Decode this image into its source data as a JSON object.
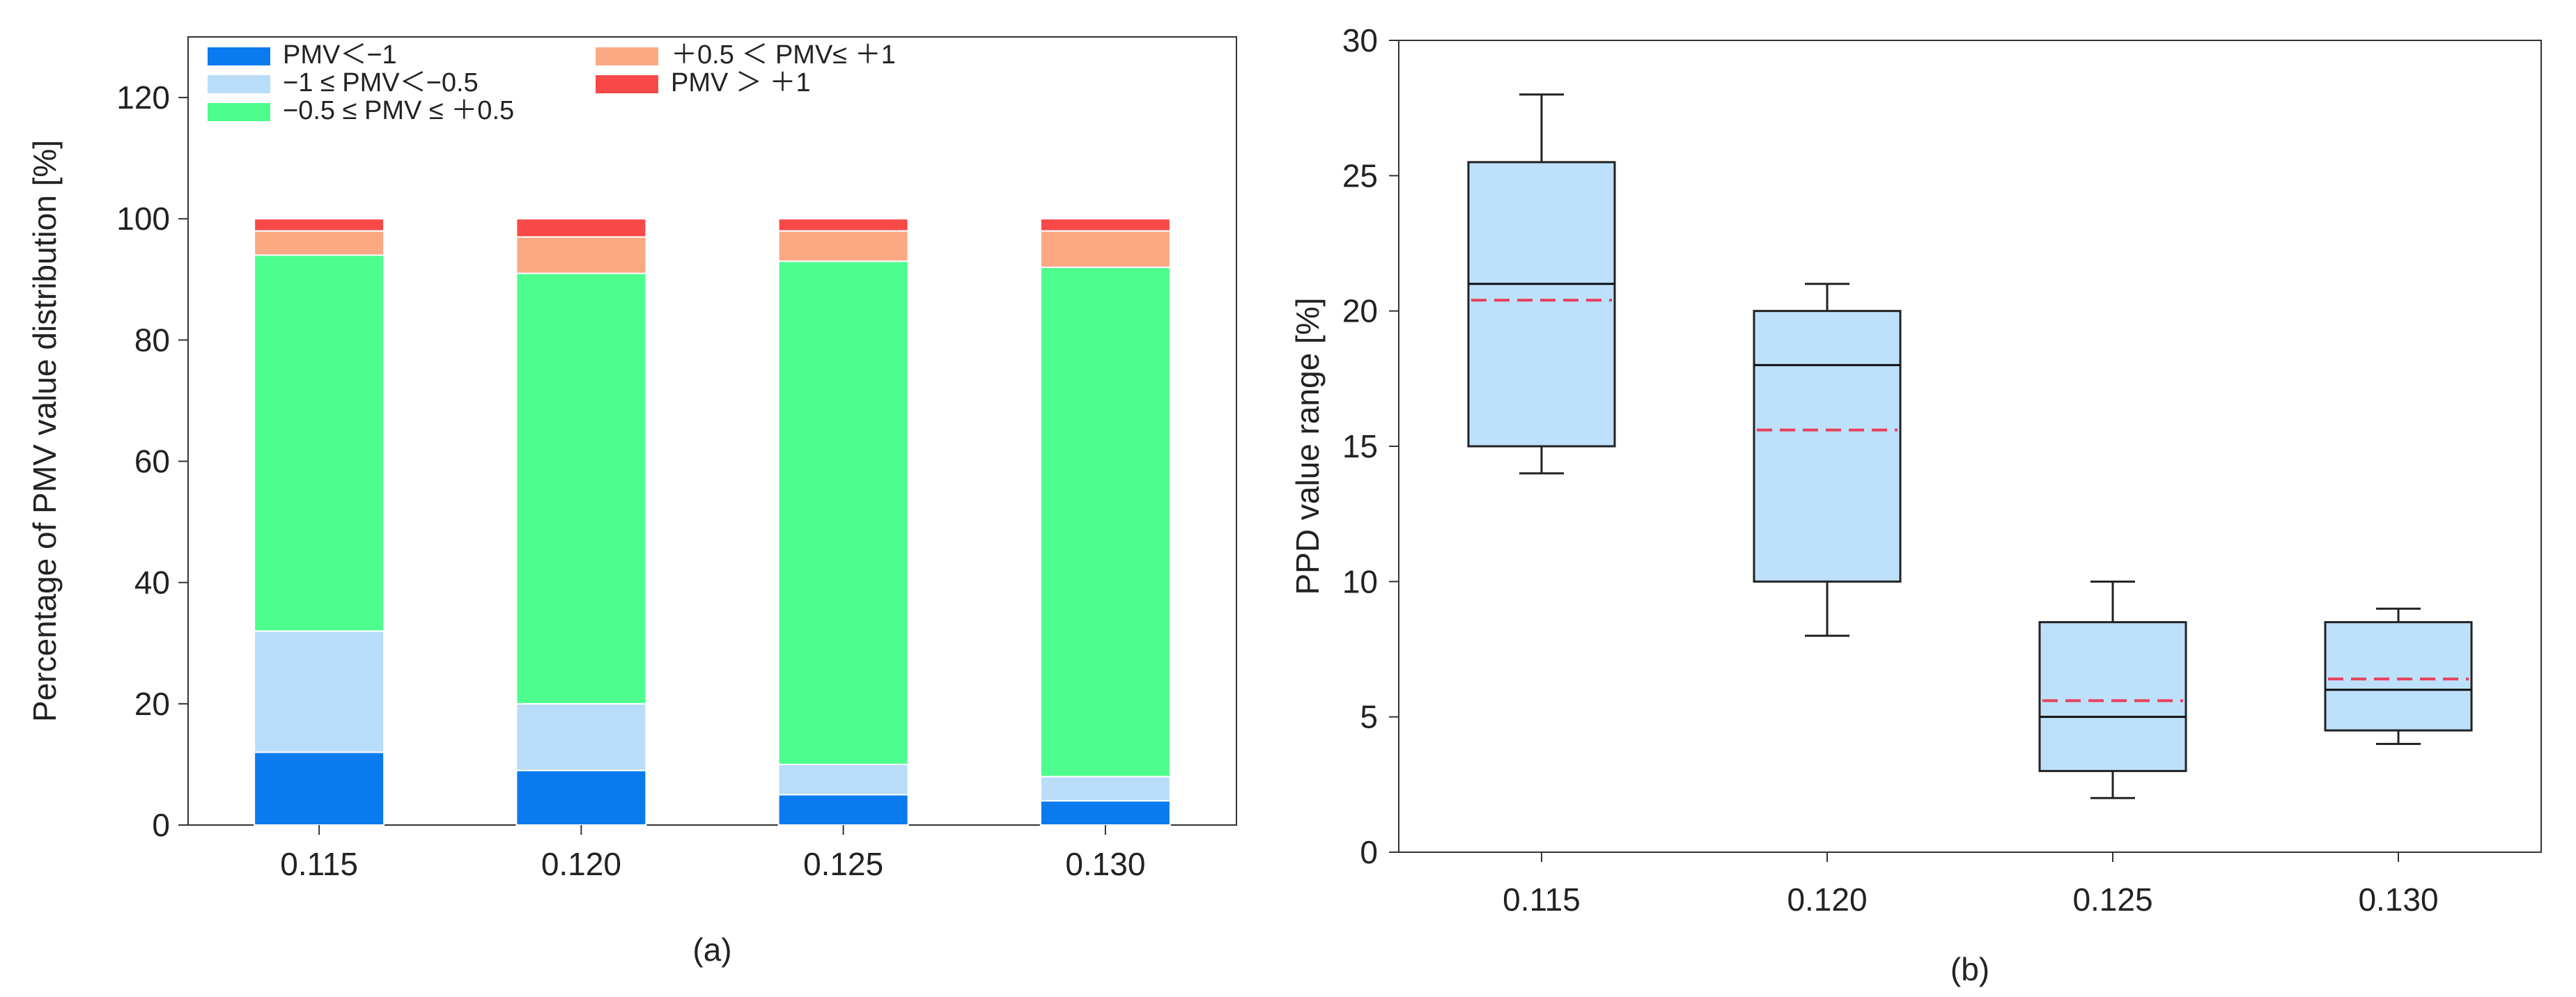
{
  "chart_data": [
    {
      "type": "bar",
      "stacked": true,
      "panel_label": "(a)",
      "xlabel": "",
      "ylabel": "Percentage of PMV value distribution [%]",
      "ylim": [
        0,
        130
      ],
      "yticks": [
        0,
        20,
        40,
        60,
        80,
        100,
        120
      ],
      "categories": [
        "0.115",
        "0.120",
        "0.125",
        "0.130"
      ],
      "legend_position": "top-left",
      "series": [
        {
          "name": "PMV＜−1",
          "color": "#0a7bef",
          "values": [
            12,
            9,
            5,
            4
          ]
        },
        {
          "name": "−1 ≤ PMV＜−0.5",
          "color": "#b9ddf8",
          "values": [
            20,
            11,
            5,
            4
          ]
        },
        {
          "name": "−0.5 ≤ PMV ≤ ＋0.5",
          "color": "#4dfd8e",
          "values": [
            62,
            71,
            83,
            84
          ]
        },
        {
          "name": "＋0.5 ＜ PMV≤ ＋1",
          "color": "#fca883",
          "values": [
            4,
            6,
            5,
            6
          ]
        },
        {
          "name": "PMV ＞ ＋1",
          "color": "#f94848",
          "values": [
            2,
            3,
            2,
            2
          ]
        }
      ]
    },
    {
      "type": "box",
      "panel_label": "(b)",
      "xlabel": "",
      "ylabel": "PPD value range [%]",
      "ylim": [
        0,
        30
      ],
      "yticks": [
        0,
        5,
        10,
        15,
        20,
        25,
        30
      ],
      "categories": [
        "0.115",
        "0.120",
        "0.125",
        "0.130"
      ],
      "box_color": "#bde0fb",
      "median_color": "#111111",
      "mean_color": "#e8405a",
      "boxes": [
        {
          "min": 14,
          "q1": 15,
          "median": 21,
          "mean": 20.4,
          "q3": 25.5,
          "max": 28
        },
        {
          "min": 8,
          "q1": 10,
          "median": 18,
          "mean": 15.6,
          "q3": 20,
          "max": 21
        },
        {
          "min": 2,
          "q1": 3,
          "median": 5,
          "mean": 5.6,
          "q3": 8.5,
          "max": 10
        },
        {
          "min": 4,
          "q1": 4.5,
          "median": 6,
          "mean": 6.4,
          "q3": 8.5,
          "max": 9
        }
      ]
    }
  ]
}
